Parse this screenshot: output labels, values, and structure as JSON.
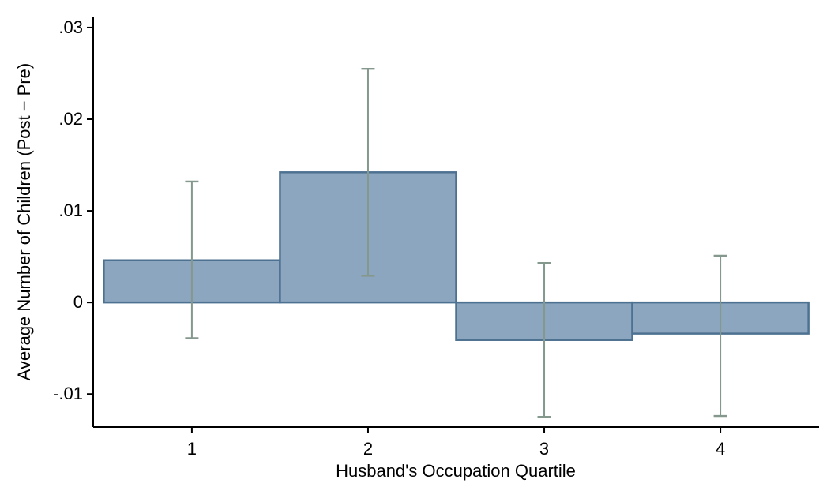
{
  "chart_data": {
    "type": "bar",
    "title": "",
    "xlabel": "Husband's Occupation Quartile",
    "ylabel": "Average Number of Children (Post − Pre)",
    "categories": [
      1,
      2,
      3,
      4
    ],
    "series": [
      {
        "name": "Average Number of Children (Post - Pre)",
        "values": [
          0.0046,
          0.0142,
          -0.0041,
          -0.0034
        ],
        "ci_low": [
          -0.0039,
          0.0029,
          -0.0125,
          -0.0124
        ],
        "ci_high": [
          0.0132,
          0.0255,
          0.0043,
          0.0051
        ]
      }
    ],
    "bar_width_units": 1.0,
    "xlim": [
      0.44,
      4.56
    ],
    "ylim": [
      -0.0136,
      0.0312
    ],
    "xticks": [
      1,
      2,
      3,
      4
    ],
    "xtick_labels": [
      "1",
      "2",
      "3",
      "4"
    ],
    "yticks": [
      -0.01,
      0,
      0.01,
      0.02,
      0.03
    ],
    "ytick_labels": [
      "-.01",
      "0",
      ".01",
      ".02",
      ".03"
    ],
    "grid": false,
    "legend_position": "none",
    "colors": {
      "bar_fill": "#8CA6BF",
      "bar_border": "#4D7191",
      "error_bar": "#84988E",
      "axis": "#000000",
      "background": "#FFFFFF"
    }
  }
}
